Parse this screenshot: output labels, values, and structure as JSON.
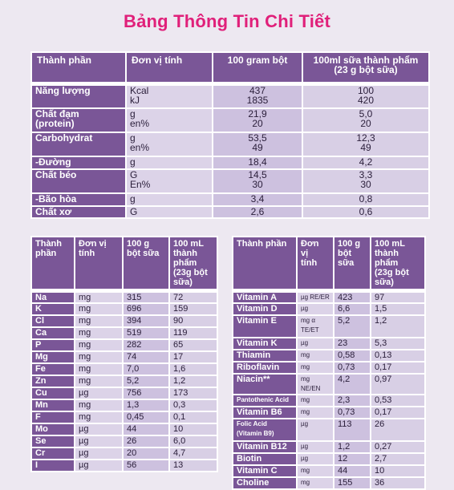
{
  "title": "Bảng Thông Tin Chi Tiết",
  "main_table": {
    "headers": [
      "Thành phần",
      "Đơn vị tính",
      "100 gram bột",
      "100ml sữa thành phẩm\n(23 g bột sữa)"
    ],
    "rows": [
      {
        "name": "Năng lượng",
        "unit": "Kcal\nkJ",
        "powder": "437\n1835",
        "milk": "100\n420"
      },
      {
        "name": "Chất đạm\n(protein)",
        "unit": "g\nen%",
        "powder": "21,9\n20",
        "milk": "5,0\n20"
      },
      {
        "name": "Carbohydrat",
        "unit": "g\nen%",
        "powder": "53,5\n49",
        "milk": "12,3\n49"
      },
      {
        "name": "-Đường",
        "unit": "g",
        "powder": "18,4",
        "milk": "4,2"
      },
      {
        "name": "Chất béo",
        "unit": "G\nEn%",
        "powder": "14,5\n30",
        "milk": "3,3\n30"
      },
      {
        "name": "-Bão hòa",
        "unit": "g",
        "powder": "3,4",
        "milk": "0,8"
      },
      {
        "name": "Chất xơ",
        "unit": "G",
        "powder": "2,6",
        "milk": "0,6"
      }
    ]
  },
  "minerals_table": {
    "headers": [
      "Thành\nphần",
      "Đơn vị\ntính",
      "100 g\nbột sữa",
      "100 mL\nthành\nphẩm\n(23g bột\nsữa)"
    ],
    "rows": [
      [
        "Na",
        "mg",
        "315",
        "72"
      ],
      [
        "K",
        "mg",
        "696",
        "159"
      ],
      [
        "Cl",
        "mg",
        "394",
        "90"
      ],
      [
        "Ca",
        "mg",
        "519",
        "119"
      ],
      [
        "P",
        "mg",
        "282",
        "65"
      ],
      [
        "Mg",
        "mg",
        "74",
        "17"
      ],
      [
        "Fe",
        "mg",
        "7,0",
        "1,6"
      ],
      [
        "Zn",
        "mg",
        "5,2",
        "1,2"
      ],
      [
        "Cu",
        "µg",
        "756",
        "173"
      ],
      [
        "Mn",
        "mg",
        "1,3",
        "0,3"
      ],
      [
        "F",
        "mg",
        "0,45",
        "0,1"
      ],
      [
        "Mo",
        "µg",
        "44",
        "10"
      ],
      [
        "Se",
        "µg",
        "26",
        "6,0"
      ],
      [
        "Cr",
        "µg",
        "20",
        "4,7"
      ],
      [
        "I",
        "µg",
        "56",
        "13"
      ]
    ]
  },
  "vitamins_table": {
    "headers": [
      "Thành phần",
      "Đơn\nvị\ntính",
      "100 g\nbột\nsữa",
      "100 mL\nthành\nphẩm\n(23g bột\nsữa)"
    ],
    "rows": [
      [
        "Vitamin A",
        "µg RE/ER",
        "423",
        "97"
      ],
      [
        "Vitamin D",
        "µg",
        "6,6",
        "1,5"
      ],
      [
        "Vitamin E",
        "mg α\nTE/ET",
        "5,2",
        "1,2"
      ],
      [
        "Vitamin K",
        "µg",
        "23",
        "5,3"
      ],
      [
        "Thiamin",
        "mg",
        "0,58",
        "0,13"
      ],
      [
        "Riboflavin",
        "mg",
        "0,73",
        "0,17"
      ],
      [
        "Niacin**",
        "mg NE/EN",
        "4,2",
        "0,97"
      ],
      [
        "Pantothenic Acid",
        "mg",
        "2,3",
        "0,53"
      ],
      [
        "Vitamin B6",
        "mg",
        "0,73",
        "0,17"
      ],
      [
        "Folic Acid\n(Vitamin B9)",
        "µg",
        "113",
        "26"
      ],
      [
        "Vitamin B12",
        "µg",
        "1,2",
        "0,27"
      ],
      [
        "Biotin",
        "µg",
        "12",
        "2,7"
      ],
      [
        "Vitamin C",
        "mg",
        "44",
        "10"
      ],
      [
        "Choline",
        "mg",
        "155",
        "36"
      ]
    ]
  }
}
